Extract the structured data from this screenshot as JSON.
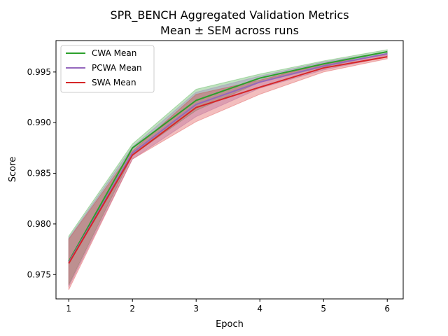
{
  "chart_data": {
    "type": "line",
    "title": "SPR_BENCH Aggregated Validation Metrics",
    "subtitle": "Mean ± SEM across runs",
    "xlabel": "Epoch",
    "ylabel": "Score",
    "x": [
      1,
      2,
      3,
      4,
      5,
      6
    ],
    "xlim": [
      0.8,
      6.25
    ],
    "ylim": [
      0.9726,
      0.9981
    ],
    "xticks": [
      "1",
      "2",
      "3",
      "4",
      "5",
      "6"
    ],
    "yticks": [
      "0.975",
      "0.980",
      "0.985",
      "0.990",
      "0.995"
    ],
    "ytick_values": [
      0.975,
      0.98,
      0.985,
      0.99,
      0.995
    ],
    "legend_position": "upper-left",
    "grid": false,
    "series": [
      {
        "name": "CWA Mean",
        "color": "#2ca02c",
        "values": [
          0.9763,
          0.9875,
          0.9922,
          0.9944,
          0.9958,
          0.997
        ],
        "lower": [
          0.974,
          0.9868,
          0.9912,
          0.994,
          0.9955,
          0.9968
        ],
        "upper": [
          0.9788,
          0.9879,
          0.9933,
          0.9948,
          0.9961,
          0.9972
        ]
      },
      {
        "name": "PCWA Mean",
        "color": "#9467bd",
        "values": [
          0.9762,
          0.987,
          0.9918,
          0.994,
          0.9956,
          0.9968
        ],
        "lower": [
          0.9738,
          0.9864,
          0.9906,
          0.9934,
          0.9952,
          0.9965
        ],
        "upper": [
          0.9786,
          0.9876,
          0.993,
          0.9946,
          0.996,
          0.997
        ]
      },
      {
        "name": "SWA Mean",
        "color": "#d62728",
        "values": [
          0.9761,
          0.9868,
          0.9915,
          0.9935,
          0.9954,
          0.9965
        ],
        "lower": [
          0.9735,
          0.9864,
          0.9901,
          0.9928,
          0.995,
          0.9963
        ],
        "upper": [
          0.9785,
          0.9872,
          0.9928,
          0.9942,
          0.9958,
          0.9967
        ]
      }
    ]
  }
}
